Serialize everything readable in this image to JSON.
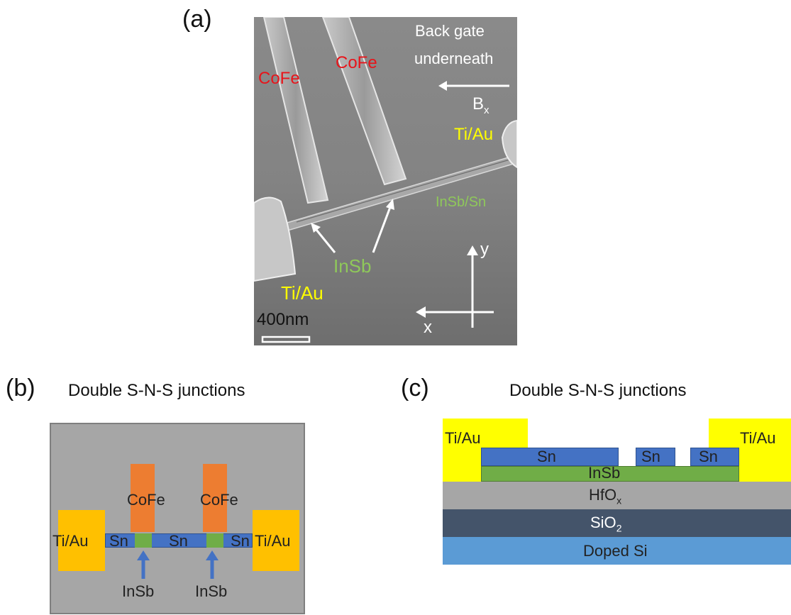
{
  "panel_a": {
    "letter": "(a)",
    "cofe_left": "CoFe",
    "cofe_right": "CoFe",
    "back_gate_line1": "Back gate",
    "back_gate_line2": "underneath",
    "bfield": "B",
    "bfield_sub": "x",
    "tiau_right": "Ti/Au",
    "insb_sn": "InSb/Sn",
    "insb": "InSb",
    "tiau_left": "Ti/Au",
    "scale": "400nm",
    "axis_y": "y",
    "axis_x": "x",
    "colors": {
      "cofe": "#e8141a",
      "tiau": "#ffff00",
      "insb": "#8fc85a",
      "white": "#ffffff"
    }
  },
  "panel_b": {
    "letter": "(b)",
    "caption": "Double S-N-S junctions",
    "tiau_left": "Ti/Au",
    "tiau_right": "Ti/Au",
    "cofe_left": "CoFe",
    "cofe_right": "CoFe",
    "sn_left": "Sn",
    "sn_mid": "Sn",
    "sn_right": "Sn",
    "insb_left": "InSb",
    "insb_right": "InSb",
    "colors": {
      "bg": "#a6a6a6",
      "tiau": "#ffc000",
      "cofe": "#ed7d31",
      "sn": "#4472c4",
      "insb": "#70ad47",
      "arrow": "#4472c4"
    }
  },
  "panel_c": {
    "letter": "(c)",
    "caption": "Double S-N-S junctions",
    "tiau_left": "Ti/Au",
    "tiau_right": "Ti/Au",
    "sn_1": "Sn",
    "sn_2": "Sn",
    "sn_3": "Sn",
    "insb": "InSb",
    "hfo": "HfO",
    "hfo_sub": "x",
    "sio": "SiO",
    "sio_sub": "2",
    "doped": "Doped Si",
    "colors": {
      "tiau": "#ffff00",
      "sn": "#4472c4",
      "insb": "#70ad47",
      "hfo": "#a6a6a6",
      "sio": "#44546a",
      "doped": "#5b9bd5"
    }
  }
}
